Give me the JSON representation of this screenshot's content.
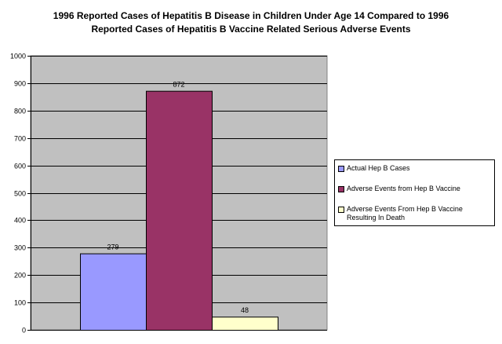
{
  "chart_data": {
    "type": "bar",
    "title_lines": [
      "1996 Reported Cases of Hepatitis B Disease in Children Under Age 14 Compared to 1996",
      "Reported Cases of Hepatitis B Vaccine Related Serious Adverse Events"
    ],
    "series": [
      {
        "name": "Actual Hep B Cases",
        "value": 279,
        "color": "#9999ff"
      },
      {
        "name": "Adverse Events from Hep B Vaccine",
        "value": 872,
        "color": "#993366"
      },
      {
        "name": "Adverse Events From Hep B Vaccine Resulting In Death",
        "value": 48,
        "color": "#ffffcc"
      }
    ],
    "ylim": [
      0,
      1000
    ],
    "yticks": [
      0,
      100,
      200,
      300,
      400,
      500,
      600,
      700,
      800,
      900,
      1000
    ],
    "grid": true,
    "plot_background": "#c0c0c0",
    "legend_position": "right"
  }
}
